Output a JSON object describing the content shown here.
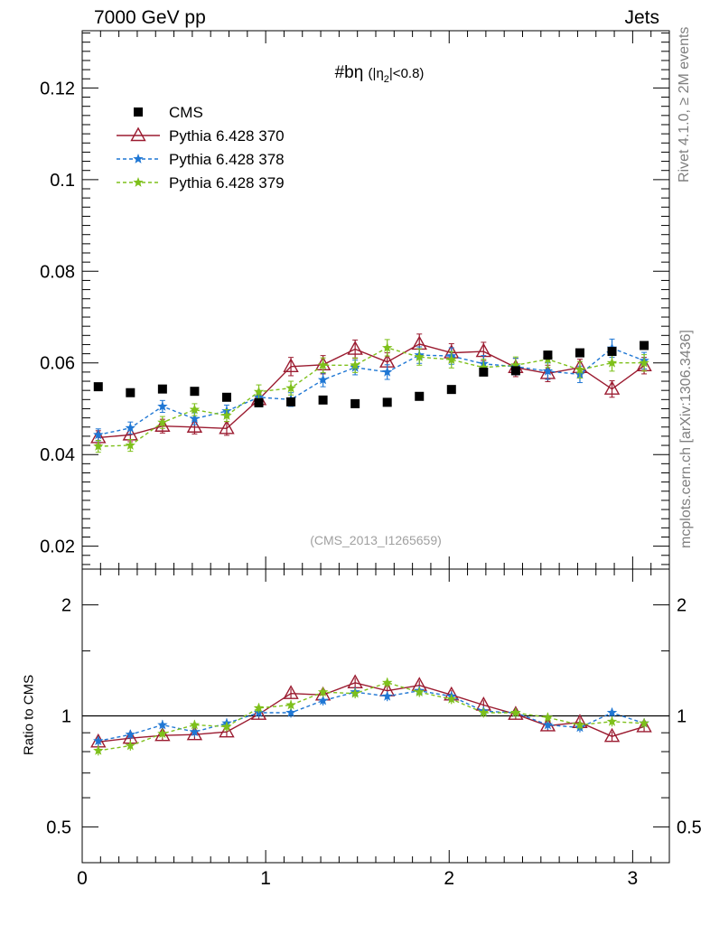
{
  "header": {
    "left": "7000 GeV pp",
    "right": "Jets"
  },
  "side_labels": {
    "rivet": "Rivet 4.1.0, ≥ 2M events",
    "source": "mcplots.cern.ch [arXiv:1306.3436]"
  },
  "colors": {
    "cms": "#000000",
    "p370": "#9b1b30",
    "p378": "#1f77d4",
    "p379": "#7ec01b",
    "watermark": "#a0a0a0"
  },
  "chart_data": [
    {
      "type": "scatter",
      "title": "#bη",
      "title_suffix": "(|η",
      "title_sub": "2",
      "title_tail": "|<0.8)",
      "watermark": "(CMS_2013_I1265659)",
      "xlabel": "",
      "ylabel": "",
      "xlim": [
        0,
        3.2
      ],
      "ylim": [
        0.015,
        0.1325
      ],
      "yticks": [
        0.02,
        0.04,
        0.06,
        0.08,
        0.1,
        0.12
      ],
      "ytick_labels": [
        "0.02",
        "0.04",
        "0.06",
        "0.08",
        "0.1",
        "0.12"
      ],
      "x": [
        0.0875,
        0.2625,
        0.4375,
        0.6125,
        0.7875,
        0.9625,
        1.1375,
        1.3125,
        1.4875,
        1.6625,
        1.8375,
        2.0125,
        2.1875,
        2.3625,
        2.5375,
        2.7125,
        2.8875,
        3.0625
      ],
      "legend": [
        "CMS",
        "Pythia 6.428 370",
        "Pythia 6.428 378",
        "Pythia 6.428 379"
      ],
      "legend_position": "top-left",
      "series": [
        {
          "name": "CMS",
          "marker": "square",
          "values": [
            0.0548,
            0.0535,
            0.0543,
            0.0538,
            0.0525,
            0.0513,
            0.0515,
            0.0519,
            0.0511,
            0.0514,
            0.0527,
            0.0542,
            0.058,
            0.0583,
            0.0617,
            0.0622,
            0.0625,
            0.0638
          ]
        },
        {
          "name": "Pythia 6.428 370",
          "marker": "triangle",
          "line": "solid",
          "values": [
            0.0437,
            0.0443,
            0.0462,
            0.046,
            0.0457,
            0.052,
            0.0592,
            0.0596,
            0.063,
            0.0602,
            0.0641,
            0.0622,
            0.0625,
            0.059,
            0.0577,
            0.059,
            0.0543,
            0.0594
          ],
          "errors": [
            0.0015,
            0.0015,
            0.0015,
            0.0015,
            0.0015,
            0.0015,
            0.002,
            0.002,
            0.002,
            0.002,
            0.0022,
            0.002,
            0.002,
            0.002,
            0.0018,
            0.0018,
            0.0018,
            0.0018
          ]
        },
        {
          "name": "Pythia 6.428 378",
          "marker": "star",
          "line": "dashed",
          "values": [
            0.0443,
            0.0458,
            0.0505,
            0.0478,
            0.0495,
            0.0525,
            0.052,
            0.0563,
            0.059,
            0.058,
            0.0617,
            0.0615,
            0.0598,
            0.0592,
            0.0582,
            0.0575,
            0.0632,
            0.0605
          ],
          "errors": [
            0.0013,
            0.0013,
            0.0013,
            0.0013,
            0.0013,
            0.0013,
            0.0015,
            0.0015,
            0.0016,
            0.0016,
            0.0018,
            0.0018,
            0.0018,
            0.0018,
            0.0018,
            0.0018,
            0.002,
            0.0018
          ]
        },
        {
          "name": "Pythia 6.428 379",
          "marker": "star",
          "line": "dashed",
          "values": [
            0.0418,
            0.042,
            0.047,
            0.0498,
            0.0485,
            0.0537,
            0.0545,
            0.0595,
            0.0595,
            0.0633,
            0.0613,
            0.0607,
            0.059,
            0.0595,
            0.0608,
            0.0585,
            0.06,
            0.06
          ],
          "errors": [
            0.0013,
            0.0013,
            0.0013,
            0.0013,
            0.0013,
            0.0015,
            0.0015,
            0.0016,
            0.0016,
            0.0018,
            0.0018,
            0.0018,
            0.0018,
            0.0018,
            0.0018,
            0.0018,
            0.0018,
            0.0018
          ]
        }
      ]
    },
    {
      "type": "line",
      "title": "",
      "xlabel": "",
      "ylabel": "Ratio to CMS",
      "xlim": [
        0,
        3.2
      ],
      "ylim": [
        0.4,
        2.5
      ],
      "scale": "log",
      "reference_line": 1,
      "yticks": [
        0.5,
        1,
        2
      ],
      "ytick_labels": [
        "0.5",
        "1",
        "2"
      ],
      "xticks": [
        0,
        1,
        2,
        3
      ],
      "xtick_labels": [
        "0",
        "1",
        "2",
        "3"
      ],
      "x": [
        0.0875,
        0.2625,
        0.4375,
        0.6125,
        0.7875,
        0.9625,
        1.1375,
        1.3125,
        1.4875,
        1.6625,
        1.8375,
        2.0125,
        2.1875,
        2.3625,
        2.5375,
        2.7125,
        2.8875,
        3.0625
      ],
      "series": [
        {
          "name": "Pythia 6.428 370",
          "values": [
            0.85,
            0.87,
            0.885,
            0.89,
            0.905,
            1.01,
            1.15,
            1.14,
            1.23,
            1.17,
            1.21,
            1.14,
            1.07,
            1.01,
            0.94,
            0.96,
            0.88,
            0.935
          ]
        },
        {
          "name": "Pythia 6.428 378",
          "values": [
            0.855,
            0.89,
            0.945,
            0.905,
            0.955,
            1.02,
            1.02,
            1.1,
            1.16,
            1.13,
            1.17,
            1.13,
            1.03,
            1.02,
            0.945,
            0.93,
            1.02,
            0.955
          ]
        },
        {
          "name": "Pythia 6.428 379",
          "values": [
            0.805,
            0.83,
            0.895,
            0.945,
            0.935,
            1.05,
            1.07,
            1.16,
            1.15,
            1.23,
            1.16,
            1.11,
            1.02,
            1.02,
            0.99,
            0.945,
            0.965,
            0.955
          ]
        }
      ]
    }
  ]
}
